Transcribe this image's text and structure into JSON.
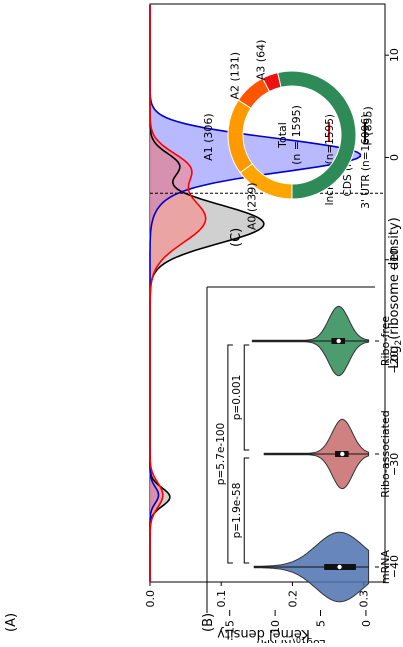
{
  "panels": {
    "a": "(A)",
    "b": "(B)",
    "c": "(C)"
  },
  "chart_data": [
    {
      "panel": "(A)",
      "type": "area",
      "xlabel": "Log2(ribosome density)",
      "ylabel": "Kernel density",
      "xlim": [
        -41.5,
        15
      ],
      "ylim": [
        0,
        0.33
      ],
      "xticks": [
        -40,
        -30,
        -20,
        -10,
        0,
        10
      ],
      "xtick_labels": [
        "−40",
        "−30",
        "−20",
        "−10",
        "0",
        "10"
      ],
      "yticks": [
        0.0,
        0.1,
        0.2,
        0.3
      ],
      "ytick_labels": [
        "0.0",
        "0.1",
        "0.2",
        "0.3"
      ],
      "cutoff_x": -3.5,
      "legend_position": "upper-right",
      "series": [
        {
          "name": "3' UTR (n=16096)",
          "color": "#000000",
          "fill": "#a9a9a9",
          "peaks": [
            {
              "mu": -33.2,
              "sigma": 0.9,
              "amp": 0.028
            },
            {
              "mu": -6.5,
              "sigma": 1.9,
              "amp": 0.16
            },
            {
              "mu": -0.8,
              "sigma": 1.2,
              "amp": 0.04
            }
          ]
        },
        {
          "name": "CDS (n=17981)",
          "color": "#0000cc",
          "fill": "#8080ff",
          "peaks": [
            {
              "mu": -33.0,
              "sigma": 0.8,
              "amp": 0.012
            },
            {
              "mu": 0.3,
              "sigma": 1.6,
              "amp": 0.28
            },
            {
              "mu": -2.0,
              "sigma": 2.0,
              "amp": 0.03
            }
          ]
        },
        {
          "name": "lncRNA (n=1595)",
          "color": "#ff0000",
          "fill": "#ff8080",
          "peaks": [
            {
              "mu": -33.0,
              "sigma": 1.2,
              "amp": 0.018
            },
            {
              "mu": -6.0,
              "sigma": 2.3,
              "amp": 0.078
            },
            {
              "mu": -1.0,
              "sigma": 1.5,
              "amp": 0.05
            }
          ]
        }
      ]
    },
    {
      "panel": "(B)",
      "type": "violin",
      "ylabel": "Log10(RPKM)",
      "ylim": [
        -1,
        17.5
      ],
      "yticks": [
        0,
        5,
        10,
        15
      ],
      "ytick_labels": [
        "0",
        "5",
        "10",
        "15"
      ],
      "categories": [
        "mRNA",
        "Ribo-associated",
        "Ribo-free"
      ],
      "colors": [
        "#4c72b0",
        "#c76b6b",
        "#2e8b57"
      ],
      "summary": [
        {
          "min": -0.3,
          "q1": 1.1,
          "median": 2.9,
          "q3": 4.6,
          "max": 12.3
        },
        {
          "min": -0.3,
          "q1": 1.9,
          "median": 2.6,
          "q3": 3.4,
          "max": 11.2
        },
        {
          "min": -0.3,
          "q1": 2.3,
          "median": 3.0,
          "q3": 3.8,
          "max": 12.5
        }
      ],
      "comparisons": [
        {
          "label": "p=1.9e-58",
          "from": "mRNA",
          "to": "Ribo-associated",
          "y": 13.4
        },
        {
          "label": "p=0.001",
          "from": "Ribo-associated",
          "to": "Ribo-free",
          "y": 13.4
        },
        {
          "label": "p=5.7e-100",
          "from": "mRNA",
          "to": "Ribo-free",
          "y": 15.2
        }
      ]
    },
    {
      "panel": "(C)",
      "type": "pie",
      "center_label": "Total (n = 1595)",
      "center_lines": [
        "Total",
        "(n = 1595)"
      ],
      "slices": [
        {
          "label": "F (855)",
          "value": 855,
          "color": "#2e8b57"
        },
        {
          "label": "A3 (64)",
          "value": 64,
          "color": "#ee1111"
        },
        {
          "label": "A2 (131)",
          "value": 131,
          "color": "#ff5500"
        },
        {
          "label": "A1 (306)",
          "value": 306,
          "color": "#ff9900"
        },
        {
          "label": "A0 (239)",
          "value": 239,
          "color": "#ffa500"
        }
      ]
    }
  ]
}
